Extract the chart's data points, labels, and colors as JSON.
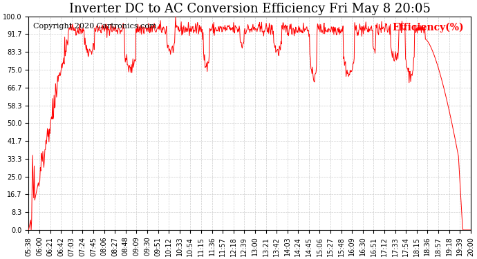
{
  "title": "Inverter DC to AC Conversion Efficiency Fri May 8 20:05",
  "copyright": "Copyright 2020 Cartronics.com",
  "legend_label": "Efficiency(%)",
  "line_color": "#FF0000",
  "background_color": "#FFFFFF",
  "grid_color": "#CCCCCC",
  "yticks": [
    0.0,
    8.3,
    16.7,
    25.0,
    33.3,
    41.7,
    50.0,
    58.3,
    66.7,
    75.0,
    83.3,
    91.7,
    100.0
  ],
  "ymin": 0.0,
  "ymax": 100.0,
  "xtick_labels": [
    "05:38",
    "06:00",
    "06:21",
    "06:42",
    "07:03",
    "07:24",
    "07:45",
    "08:06",
    "08:27",
    "08:48",
    "09:09",
    "09:30",
    "09:51",
    "10:12",
    "10:33",
    "10:54",
    "11:15",
    "11:36",
    "11:57",
    "12:18",
    "12:39",
    "13:00",
    "13:21",
    "13:42",
    "14:03",
    "14:24",
    "14:45",
    "15:06",
    "15:27",
    "15:48",
    "16:09",
    "16:30",
    "16:51",
    "17:12",
    "17:33",
    "17:54",
    "18:15",
    "18:36",
    "18:57",
    "19:18",
    "19:39",
    "20:00"
  ],
  "title_fontsize": 13,
  "copyright_fontsize": 8,
  "legend_fontsize": 10,
  "tick_fontsize": 7
}
